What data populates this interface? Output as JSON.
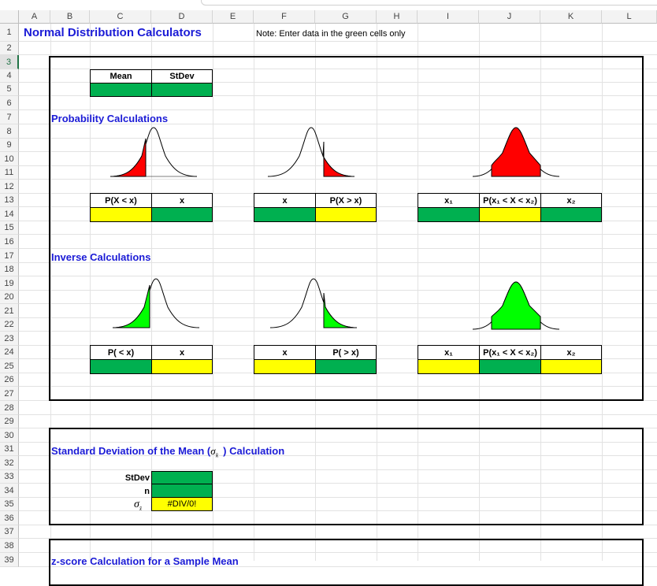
{
  "columns": [
    "A",
    "B",
    "C",
    "D",
    "E",
    "F",
    "G",
    "H",
    "I",
    "J",
    "K",
    "L"
  ],
  "rows": [
    "1",
    "2",
    "3",
    "4",
    "5",
    "6",
    "7",
    "8",
    "9",
    "10",
    "11",
    "12",
    "13",
    "14",
    "15",
    "16",
    "17",
    "18",
    "19",
    "20",
    "21",
    "22",
    "23",
    "24",
    "25",
    "26",
    "27",
    "28",
    "29",
    "30",
    "31",
    "32",
    "33",
    "34",
    "35",
    "36",
    "37",
    "38",
    "39"
  ],
  "selected_row": "3",
  "sheet": {
    "title": "Normal Distribution Calculators",
    "note": "Note: Enter data in the green cells only",
    "mean_label": "Mean",
    "stdev_label": "StDev",
    "prob_title": "Probability Calculations",
    "inverse_title": "Inverse Calculations",
    "p_lt_x": "P(X < x)",
    "x": "x",
    "p_gt_x": "P(X > x)",
    "x1": "x₁",
    "p_between": "P(x₁ < X < x₂)",
    "x2": "x₂",
    "ip_lt": "P( < x)",
    "ip_gt": "P( > x)",
    "sdm_title_a": "Standard Deviation of the Mean (",
    "sdm_title_b": ") Calculation",
    "sigma_sym": "σ",
    "xbar_sub": "x̄",
    "sdm_stdev": "StDev",
    "sdm_n": "n",
    "div_error": "#DIV/0!",
    "zscore_title": "z-score Calculation for a Sample Mean"
  },
  "colors": {
    "green": "#00b050",
    "yellow": "#ffff00",
    "red_fill": "#ff0000",
    "green_fill": "#00ff00",
    "title_blue": "#1b1bd6"
  }
}
